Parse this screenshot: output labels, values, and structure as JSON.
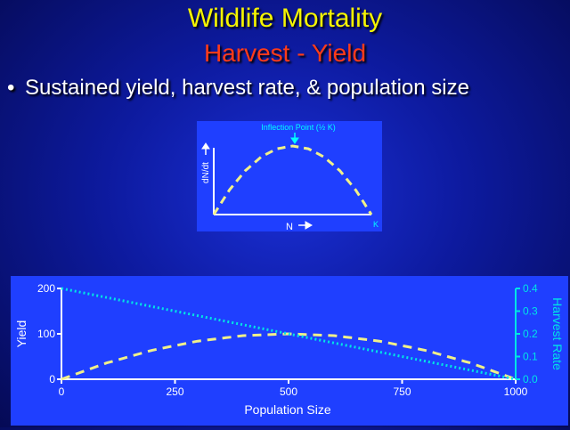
{
  "slide": {
    "title": "Wildlife Mortality",
    "subtitle": "Harvest - Yield",
    "bullet": "Sustained yield, harvest rate, & population size"
  },
  "colors": {
    "title": "#f5f500",
    "subtitle": "#ff3b1a",
    "panel": "#1f3fff",
    "yield_curve": "#f0f08a",
    "harvest_curve": "#00e5e5"
  },
  "chart_data": [
    {
      "type": "line",
      "annotation": "Inflection Point (½ K)",
      "xlabel": "N",
      "ylabel": "dN/dt",
      "x_end_label": "K",
      "series": [
        {
          "x": [
            0,
            0.1,
            0.2,
            0.3,
            0.4,
            0.5,
            0.6,
            0.7,
            0.8,
            0.9,
            1.0
          ],
          "y": [
            0,
            0.36,
            0.64,
            0.84,
            0.96,
            1.0,
            0.96,
            0.84,
            0.64,
            0.36,
            0
          ]
        }
      ],
      "grid": false
    },
    {
      "type": "line",
      "xlabel": "Population Size",
      "ylabel": "Yield",
      "y2label": "Harvest Rate",
      "x_ticks": [
        "0",
        "250",
        "500",
        "750",
        "1000"
      ],
      "y_ticks": [
        "0",
        "100",
        "200"
      ],
      "y2_ticks": [
        "0.0",
        "0.1",
        "0.2",
        "0.3",
        "0.4"
      ],
      "xlim": [
        0,
        1000
      ],
      "ylim": [
        0,
        200
      ],
      "y2lim": [
        0,
        0.4
      ],
      "series": [
        {
          "axis": "left",
          "style": "dashed",
          "x": [
            0,
            100,
            200,
            300,
            400,
            500,
            600,
            700,
            800,
            900,
            1000
          ],
          "y": [
            0,
            36,
            64,
            84,
            96,
            100,
            96,
            84,
            64,
            36,
            0
          ]
        },
        {
          "axis": "right",
          "style": "dotted",
          "x": [
            0,
            1000
          ],
          "y": [
            0.4,
            0.0
          ]
        }
      ],
      "grid": false
    }
  ]
}
